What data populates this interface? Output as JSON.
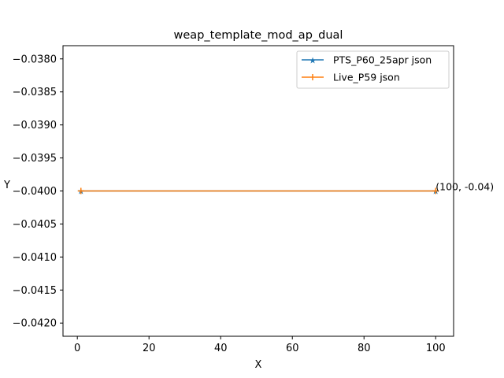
{
  "chart_data": {
    "type": "line",
    "title": "weap_template_mod_ap_dual",
    "xlabel": "X",
    "ylabel": "Y",
    "xlim": [
      -4,
      105
    ],
    "ylim": [
      -0.0422,
      -0.0378
    ],
    "xticks": [
      0,
      20,
      40,
      60,
      80,
      100
    ],
    "xtick_labels": [
      "0",
      "20",
      "40",
      "60",
      "80",
      "100"
    ],
    "yticks": [
      -0.038,
      -0.0385,
      -0.039,
      -0.0395,
      -0.04,
      -0.0405,
      -0.041,
      -0.0415,
      -0.042
    ],
    "ytick_labels": [
      "−0.0380",
      "−0.0385",
      "−0.0390",
      "−0.0395",
      "−0.0400",
      "−0.0405",
      "−0.0410",
      "−0.0415",
      "−0.0420"
    ],
    "grid": false,
    "legend_position": "top-right",
    "series": [
      {
        "name": "PTS_P60_25apr json",
        "color": "#1f77b4",
        "marker": "star",
        "x": [
          1,
          100
        ],
        "y": [
          -0.04,
          -0.04
        ]
      },
      {
        "name": "Live_P59 json",
        "color": "#ff7f0e",
        "marker": "plus",
        "x": [
          1,
          100
        ],
        "y": [
          -0.04,
          -0.04
        ]
      }
    ],
    "annotations": [
      {
        "text": "(100, -0.04)",
        "x": 100,
        "y": -0.04
      }
    ]
  }
}
